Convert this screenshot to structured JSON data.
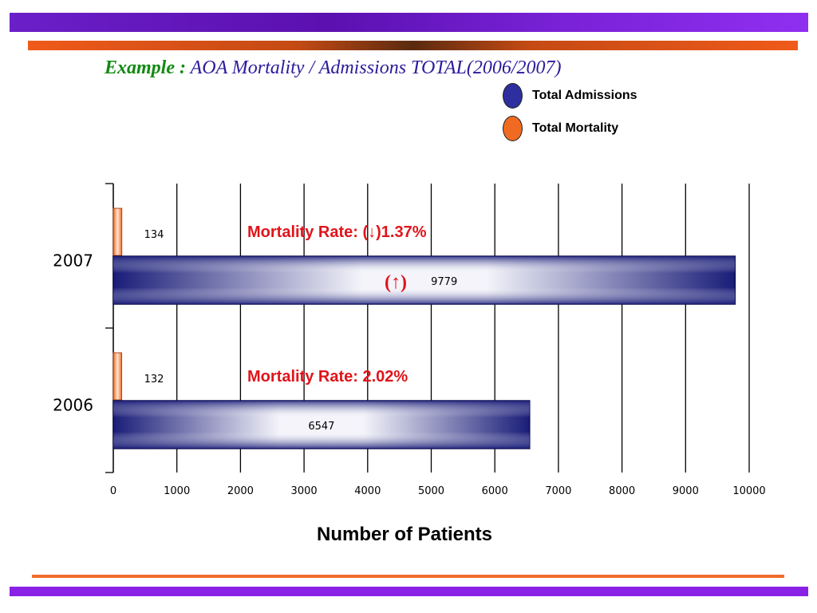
{
  "title": {
    "lead": "Example :",
    "rest": "AOA Mortality / Admissions TOTAL(2006/2007)"
  },
  "legend": [
    {
      "label": "Total Admissions",
      "color": "#2e2f9e"
    },
    {
      "label": "Total Mortality",
      "color": "#f06a22"
    }
  ],
  "chart_data": {
    "type": "bar",
    "orientation": "horizontal",
    "categories": [
      "2006",
      "2007"
    ],
    "series": [
      {
        "name": "Total Mortality",
        "values": [
          132,
          134
        ],
        "color": "#f06a22"
      },
      {
        "name": "Total Admissions",
        "values": [
          6547,
          9779
        ],
        "color": "#1c1f7a"
      }
    ],
    "xlabel": "Number of Patients",
    "xlim": [
      0,
      10000
    ],
    "xticks": [
      0,
      1000,
      2000,
      3000,
      4000,
      5000,
      6000,
      7000,
      8000,
      9000,
      10000
    ],
    "grid": true,
    "legend_position": "top-right",
    "annotations": [
      {
        "category": "2007",
        "text": "Mortality Rate: (↓)1.37%"
      },
      {
        "category": "2006",
        "text": "Mortality Rate: 2.02%"
      },
      {
        "category": "2007",
        "text": "(↑)"
      }
    ]
  }
}
